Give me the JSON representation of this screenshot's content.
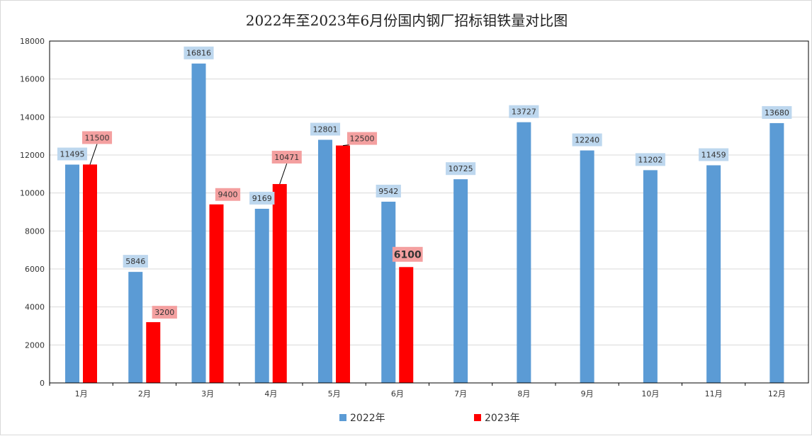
{
  "chart_data": {
    "type": "bar",
    "title": "2022年至2023年6月份国内钢厂招标钼铁量对比图",
    "xlabel": "",
    "ylabel": "",
    "categories": [
      "1月",
      "2月",
      "3月",
      "4月",
      "5月",
      "6月",
      "7月",
      "8月",
      "9月",
      "10月",
      "11月",
      "12月"
    ],
    "ylim": [
      0,
      18000
    ],
    "yticks": [
      0,
      2000,
      4000,
      6000,
      8000,
      10000,
      12000,
      14000,
      16000,
      18000
    ],
    "grid": true,
    "legend_position": "bottom",
    "series": [
      {
        "name": "2022年",
        "color": "#5b9bd5",
        "label_bg": "#bdd7ee",
        "values": [
          11495,
          5846,
          16816,
          9169,
          12801,
          9542,
          10725,
          13727,
          12240,
          11202,
          11459,
          13680
        ],
        "labels": [
          "11495",
          "5846",
          "16816",
          "9169",
          "12801",
          "9542",
          "10725",
          "13727",
          "12240",
          "11202",
          "11459",
          "13680"
        ]
      },
      {
        "name": "2023年",
        "color": "#ff0000",
        "label_bg": "#f4a0a0",
        "values": [
          11500,
          3200,
          9400,
          10471,
          12500,
          6100,
          null,
          null,
          null,
          null,
          null,
          null
        ],
        "labels": [
          "11500",
          "3200",
          "9400",
          "10471",
          "12500",
          "6100",
          "",
          "",
          "",
          "",
          "",
          ""
        ]
      }
    ]
  }
}
